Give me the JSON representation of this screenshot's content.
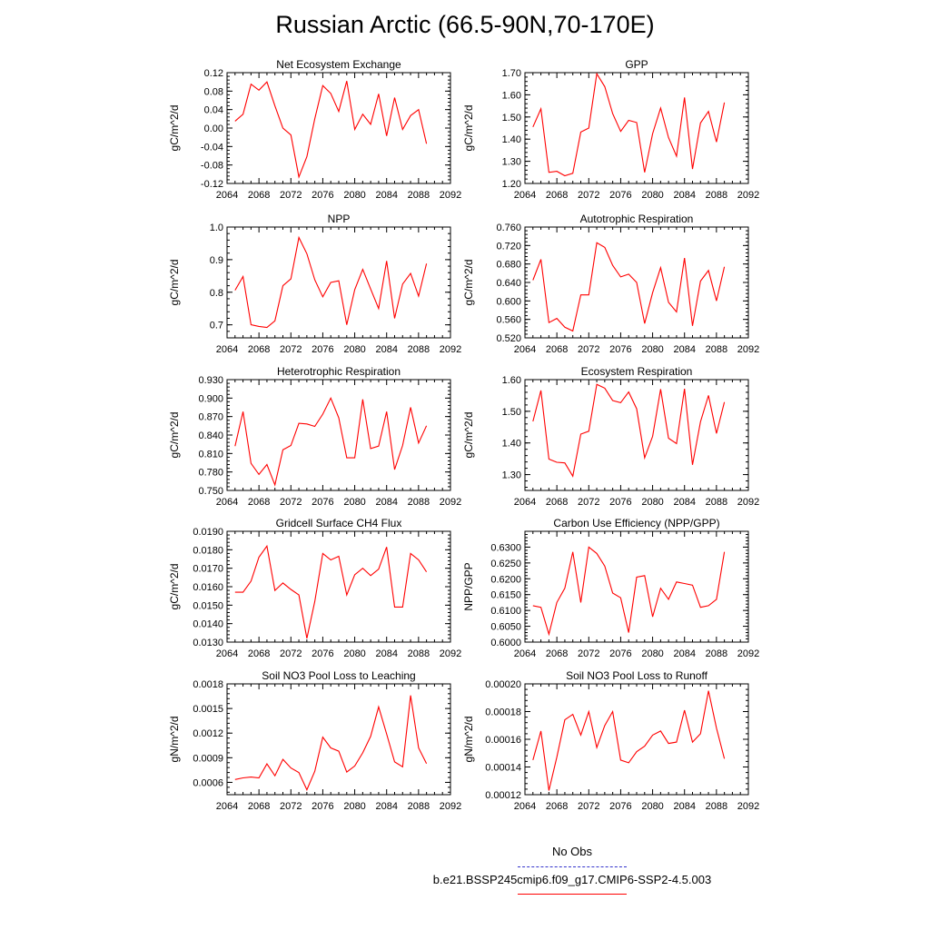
{
  "title": "Russian Arctic (66.5-90N,70-170E)",
  "legend": {
    "items": [
      {
        "label": "No Obs",
        "color": "#3333cc",
        "style": "dashed"
      },
      {
        "label": "b.e21.BSSP245cmip6.f09_g17.CMIP6-SSP2-4.5.003",
        "color": "#ff0000",
        "style": "solid"
      }
    ]
  },
  "line_color": "#ff0000",
  "chart_data": [
    {
      "type": "line",
      "title": "Net Ecosystem Exchange",
      "ylabel": "gC/m^2/d",
      "xlim": [
        2064,
        2092
      ],
      "xticks": [
        2064,
        2068,
        2072,
        2076,
        2080,
        2084,
        2088,
        2092
      ],
      "ylim": [
        -0.12,
        0.12
      ],
      "yticks": [
        -0.12,
        -0.08,
        -0.04,
        0.0,
        0.04,
        0.08,
        0.12
      ],
      "ytick_labels": [
        "-0.12",
        "-0.08",
        "-0.04",
        "0.00",
        "0.04",
        "0.08",
        "0.12"
      ],
      "x": [
        2065,
        2066,
        2067,
        2068,
        2069,
        2070,
        2071,
        2072,
        2073,
        2074,
        2075,
        2076,
        2077,
        2078,
        2079,
        2080,
        2081,
        2082,
        2083,
        2084,
        2085,
        2086,
        2087,
        2088,
        2089
      ],
      "y": [
        0.015,
        0.03,
        0.095,
        0.082,
        0.1,
        0.048,
        0.0,
        -0.015,
        -0.106,
        -0.062,
        0.02,
        0.092,
        0.075,
        0.036,
        0.102,
        -0.003,
        0.03,
        0.008,
        0.074,
        -0.017,
        0.066,
        -0.003,
        0.027,
        0.04,
        -0.034
      ]
    },
    {
      "type": "line",
      "title": "GPP",
      "ylabel": "gC/m^2/d",
      "xlim": [
        2064,
        2092
      ],
      "xticks": [
        2064,
        2068,
        2072,
        2076,
        2080,
        2084,
        2088,
        2092
      ],
      "ylim": [
        1.2,
        1.7
      ],
      "yticks": [
        1.2,
        1.3,
        1.4,
        1.5,
        1.6,
        1.7
      ],
      "ytick_labels": [
        "1.20",
        "1.30",
        "1.40",
        "1.50",
        "1.60",
        "1.70"
      ],
      "x": [
        2065,
        2066,
        2067,
        2068,
        2069,
        2070,
        2071,
        2072,
        2073,
        2074,
        2075,
        2076,
        2077,
        2078,
        2079,
        2080,
        2081,
        2082,
        2083,
        2084,
        2085,
        2086,
        2087,
        2088,
        2089
      ],
      "y": [
        1.455,
        1.537,
        1.25,
        1.255,
        1.235,
        1.246,
        1.432,
        1.45,
        1.695,
        1.637,
        1.515,
        1.435,
        1.485,
        1.475,
        1.25,
        1.425,
        1.54,
        1.407,
        1.323,
        1.588,
        1.265,
        1.473,
        1.525,
        1.387,
        1.565
      ]
    },
    {
      "type": "line",
      "title": "NPP",
      "ylabel": "gC/m^2/d",
      "xlim": [
        2064,
        2092
      ],
      "xticks": [
        2064,
        2068,
        2072,
        2076,
        2080,
        2084,
        2088,
        2092
      ],
      "ylim": [
        0.66,
        1.0
      ],
      "yticks": [
        0.7,
        0.8,
        0.9,
        1.0
      ],
      "ytick_labels": [
        "0.7",
        "0.8",
        "0.9",
        "1.0"
      ],
      "x": [
        2065,
        2066,
        2067,
        2068,
        2069,
        2070,
        2071,
        2072,
        2073,
        2074,
        2075,
        2076,
        2077,
        2078,
        2079,
        2080,
        2081,
        2082,
        2083,
        2084,
        2085,
        2086,
        2087,
        2088,
        2089
      ],
      "y": [
        0.806,
        0.848,
        0.7,
        0.695,
        0.692,
        0.712,
        0.82,
        0.841,
        0.968,
        0.918,
        0.838,
        0.786,
        0.83,
        0.835,
        0.7,
        0.808,
        0.87,
        0.81,
        0.75,
        0.896,
        0.72,
        0.825,
        0.858,
        0.788,
        0.888
      ]
    },
    {
      "type": "line",
      "title": "Autotrophic Respiration",
      "ylabel": "gC/m^2/d",
      "xlim": [
        2064,
        2092
      ],
      "xticks": [
        2064,
        2068,
        2072,
        2076,
        2080,
        2084,
        2088,
        2092
      ],
      "ylim": [
        0.52,
        0.76
      ],
      "yticks": [
        0.52,
        0.56,
        0.6,
        0.64,
        0.68,
        0.72,
        0.76
      ],
      "ytick_labels": [
        "0.520",
        "0.560",
        "0.600",
        "0.640",
        "0.680",
        "0.720",
        "0.760"
      ],
      "x": [
        2065,
        2066,
        2067,
        2068,
        2069,
        2070,
        2071,
        2072,
        2073,
        2074,
        2075,
        2076,
        2077,
        2078,
        2079,
        2080,
        2081,
        2082,
        2083,
        2084,
        2085,
        2086,
        2087,
        2088,
        2089
      ],
      "y": [
        0.645,
        0.69,
        0.553,
        0.562,
        0.543,
        0.535,
        0.613,
        0.613,
        0.726,
        0.716,
        0.677,
        0.652,
        0.658,
        0.64,
        0.551,
        0.618,
        0.672,
        0.597,
        0.576,
        0.693,
        0.546,
        0.643,
        0.666,
        0.6,
        0.674
      ]
    },
    {
      "type": "line",
      "title": "Heterotrophic Respiration",
      "ylabel": "gC/m^2/d",
      "xlim": [
        2064,
        2092
      ],
      "xticks": [
        2064,
        2068,
        2072,
        2076,
        2080,
        2084,
        2088,
        2092
      ],
      "ylim": [
        0.75,
        0.93
      ],
      "yticks": [
        0.75,
        0.78,
        0.81,
        0.84,
        0.87,
        0.9,
        0.93
      ],
      "ytick_labels": [
        "0.750",
        "0.780",
        "0.810",
        "0.840",
        "0.870",
        "0.900",
        "0.930"
      ],
      "x": [
        2065,
        2066,
        2067,
        2068,
        2069,
        2070,
        2071,
        2072,
        2073,
        2074,
        2075,
        2076,
        2077,
        2078,
        2079,
        2080,
        2081,
        2082,
        2083,
        2084,
        2085,
        2086,
        2087,
        2088,
        2089
      ],
      "y": [
        0.822,
        0.878,
        0.794,
        0.776,
        0.792,
        0.759,
        0.816,
        0.823,
        0.859,
        0.858,
        0.854,
        0.874,
        0.9,
        0.868,
        0.803,
        0.803,
        0.898,
        0.818,
        0.822,
        0.878,
        0.784,
        0.823,
        0.885,
        0.827,
        0.855
      ]
    },
    {
      "type": "line",
      "title": "Ecosystem Respiration",
      "ylabel": "gC/m^2/d",
      "xlim": [
        2064,
        2092
      ],
      "xticks": [
        2064,
        2068,
        2072,
        2076,
        2080,
        2084,
        2088,
        2092
      ],
      "ylim": [
        1.25,
        1.6
      ],
      "yticks": [
        1.3,
        1.4,
        1.5,
        1.6
      ],
      "ytick_labels": [
        "1.30",
        "1.40",
        "1.50",
        "1.60"
      ],
      "x": [
        2065,
        2066,
        2067,
        2068,
        2069,
        2070,
        2071,
        2072,
        2073,
        2074,
        2075,
        2076,
        2077,
        2078,
        2079,
        2080,
        2081,
        2082,
        2083,
        2084,
        2085,
        2086,
        2087,
        2088,
        2089
      ],
      "y": [
        1.468,
        1.566,
        1.349,
        1.339,
        1.337,
        1.295,
        1.428,
        1.437,
        1.585,
        1.573,
        1.534,
        1.527,
        1.561,
        1.508,
        1.353,
        1.421,
        1.57,
        1.415,
        1.398,
        1.571,
        1.331,
        1.467,
        1.55,
        1.43,
        1.529
      ]
    },
    {
      "type": "line",
      "title": "Gridcell Surface CH4 Flux",
      "ylabel": "gC/m^2/d",
      "xlim": [
        2064,
        2092
      ],
      "xticks": [
        2064,
        2068,
        2072,
        2076,
        2080,
        2084,
        2088,
        2092
      ],
      "ylim": [
        0.013,
        0.019
      ],
      "yticks": [
        0.013,
        0.014,
        0.015,
        0.016,
        0.017,
        0.018,
        0.019
      ],
      "ytick_labels": [
        "0.0130",
        "0.0140",
        "0.0150",
        "0.0160",
        "0.0170",
        "0.0180",
        "0.0190"
      ],
      "x": [
        2065,
        2066,
        2067,
        2068,
        2069,
        2070,
        2071,
        2072,
        2073,
        2074,
        2075,
        2076,
        2077,
        2078,
        2079,
        2080,
        2081,
        2082,
        2083,
        2084,
        2085,
        2086,
        2087,
        2088,
        2089
      ],
      "y": [
        0.0157,
        0.0157,
        0.0163,
        0.0176,
        0.0182,
        0.0158,
        0.0162,
        0.01585,
        0.01555,
        0.0132,
        0.0152,
        0.0178,
        0.01745,
        0.01765,
        0.01555,
        0.01665,
        0.017,
        0.0166,
        0.01695,
        0.01815,
        0.0149,
        0.0149,
        0.0178,
        0.01745,
        0.0168
      ]
    },
    {
      "type": "line",
      "title": "Carbon Use Efficiency (NPP/GPP)",
      "ylabel": "NPP/GPP",
      "xlim": [
        2064,
        2092
      ],
      "xticks": [
        2064,
        2068,
        2072,
        2076,
        2080,
        2084,
        2088,
        2092
      ],
      "ylim": [
        0.6,
        0.635
      ],
      "yticks": [
        0.6,
        0.605,
        0.61,
        0.615,
        0.62,
        0.625,
        0.63
      ],
      "ytick_labels": [
        "0.6000",
        "0.6050",
        "0.6100",
        "0.6150",
        "0.6200",
        "0.6250",
        "0.6300"
      ],
      "x": [
        2065,
        2066,
        2067,
        2068,
        2069,
        2070,
        2071,
        2072,
        2073,
        2074,
        2075,
        2076,
        2077,
        2078,
        2079,
        2080,
        2081,
        2082,
        2083,
        2084,
        2085,
        2086,
        2087,
        2088,
        2089
      ],
      "y": [
        0.6115,
        0.611,
        0.6025,
        0.6125,
        0.617,
        0.6285,
        0.6125,
        0.63,
        0.628,
        0.624,
        0.6155,
        0.614,
        0.603,
        0.6205,
        0.621,
        0.608,
        0.617,
        0.6135,
        0.619,
        0.6185,
        0.618,
        0.611,
        0.6115,
        0.6135,
        0.6285
      ]
    },
    {
      "type": "line",
      "title": "Soil NO3 Pool Loss to Leaching",
      "ylabel": "gN/m^2/d",
      "xlim": [
        2064,
        2092
      ],
      "xticks": [
        2064,
        2068,
        2072,
        2076,
        2080,
        2084,
        2088,
        2092
      ],
      "ylim": [
        0.00045,
        0.0018
      ],
      "yticks": [
        0.0006,
        0.0009,
        0.0012,
        0.0015,
        0.0018
      ],
      "ytick_labels": [
        "0.0006",
        "0.0009",
        "0.0012",
        "0.0015",
        "0.0018"
      ],
      "x": [
        2065,
        2066,
        2067,
        2068,
        2069,
        2070,
        2071,
        2072,
        2073,
        2074,
        2075,
        2076,
        2077,
        2078,
        2079,
        2080,
        2081,
        2082,
        2083,
        2084,
        2085,
        2086,
        2087,
        2088,
        2089
      ],
      "y": [
        0.000635,
        0.000655,
        0.000665,
        0.000655,
        0.000825,
        0.00068,
        0.00088,
        0.000775,
        0.00072,
        0.00051,
        0.000735,
        0.00115,
        0.00102,
        0.00098,
        0.000725,
        0.0008,
        0.00096,
        0.00116,
        0.00152,
        0.00119,
        0.00085,
        0.00079,
        0.00166,
        0.00102,
        0.00083
      ]
    },
    {
      "type": "line",
      "title": "Soil NO3 Pool Loss to Runoff",
      "ylabel": "gN/m^2/d",
      "xlim": [
        2064,
        2092
      ],
      "xticks": [
        2064,
        2068,
        2072,
        2076,
        2080,
        2084,
        2088,
        2092
      ],
      "ylim": [
        0.00012,
        0.0002
      ],
      "yticks": [
        0.00012,
        0.00014,
        0.00016,
        0.00018,
        0.0002
      ],
      "ytick_labels": [
        "0.00012",
        "0.00014",
        "0.00016",
        "0.00018",
        "0.00020"
      ],
      "x": [
        2065,
        2066,
        2067,
        2068,
        2069,
        2070,
        2071,
        2072,
        2073,
        2074,
        2075,
        2076,
        2077,
        2078,
        2079,
        2080,
        2081,
        2082,
        2083,
        2084,
        2085,
        2086,
        2087,
        2088,
        2089
      ],
      "y": [
        0.000145,
        0.000166,
        0.000123,
        0.000147,
        0.000174,
        0.000178,
        0.000163,
        0.00018,
        0.000154,
        0.00017,
        0.00018,
        0.000145,
        0.000143,
        0.000151,
        0.000155,
        0.000163,
        0.000166,
        0.000157,
        0.000158,
        0.000181,
        0.000158,
        0.000164,
        0.000195,
        0.000168,
        0.000146
      ]
    }
  ]
}
